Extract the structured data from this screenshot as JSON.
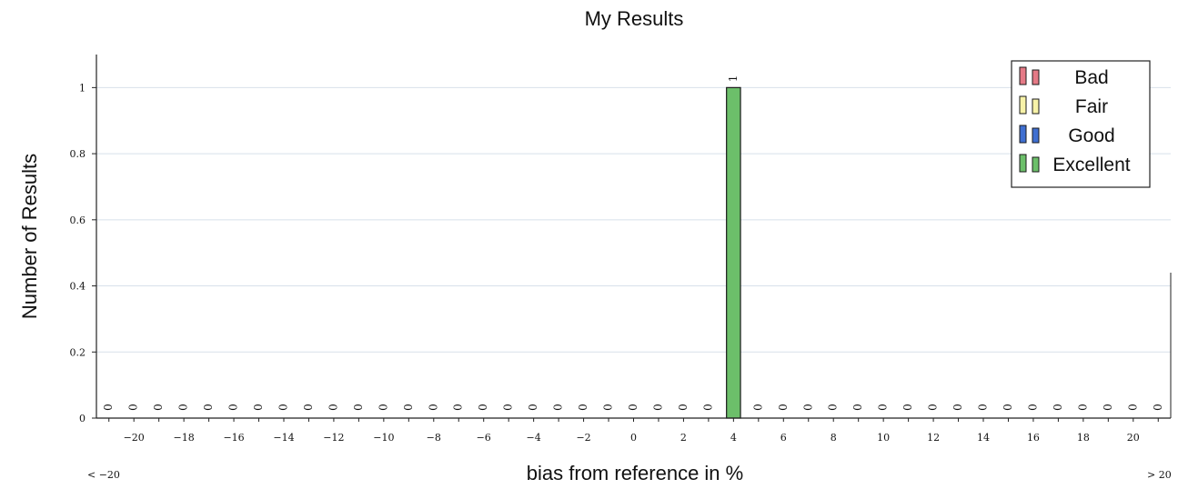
{
  "chart_data": {
    "type": "bar",
    "title": "My Results",
    "xlabel": "bias from reference in %",
    "ylabel": "Number of Results",
    "x_range_labels": {
      "low": "< −20",
      "high": "> 20"
    },
    "categories": [
      -21,
      -20,
      -19,
      -18,
      -17,
      -16,
      -15,
      -14,
      -13,
      -12,
      -11,
      -10,
      -9,
      -8,
      -7,
      -6,
      -5,
      -4,
      -3,
      -2,
      -1,
      0,
      1,
      2,
      3,
      4,
      5,
      6,
      7,
      8,
      9,
      10,
      11,
      12,
      13,
      14,
      15,
      16,
      17,
      18,
      19,
      20,
      21
    ],
    "x_tick_labels": [
      "−20",
      "−18",
      "−16",
      "−14",
      "−12",
      "−10",
      "−8",
      "−6",
      "−4",
      "−2",
      "0",
      "2",
      "4",
      "6",
      "8",
      "10",
      "12",
      "14",
      "16",
      "18",
      "20"
    ],
    "x_tick_values": [
      -20,
      -18,
      -16,
      -14,
      -12,
      -10,
      -8,
      -6,
      -4,
      -2,
      0,
      2,
      4,
      6,
      8,
      10,
      12,
      14,
      16,
      18,
      20
    ],
    "ylim": [
      0,
      1.1
    ],
    "y_ticks": [
      0,
      0.2,
      0.4,
      0.6,
      0.8,
      1
    ],
    "y_tick_labels": [
      "0",
      "0.2",
      "0.4",
      "0.6",
      "0.8",
      "1"
    ],
    "grid": true,
    "legend_position": "top-right",
    "series": [
      {
        "name": "Bad",
        "color": "#e57a86",
        "values": [
          0,
          0,
          0,
          0,
          0,
          0,
          0,
          0,
          0,
          0,
          0,
          0,
          0,
          0,
          0,
          0,
          0,
          0,
          0,
          0,
          0,
          0,
          0,
          0,
          0,
          0,
          0,
          0,
          0,
          0,
          0,
          0,
          0,
          0,
          0,
          0,
          0,
          0,
          0,
          0,
          0,
          0,
          0
        ]
      },
      {
        "name": "Fair",
        "color": "#f7f2a8",
        "values": [
          0,
          0,
          0,
          0,
          0,
          0,
          0,
          0,
          0,
          0,
          0,
          0,
          0,
          0,
          0,
          0,
          0,
          0,
          0,
          0,
          0,
          0,
          0,
          0,
          0,
          0,
          0,
          0,
          0,
          0,
          0,
          0,
          0,
          0,
          0,
          0,
          0,
          0,
          0,
          0,
          0,
          0,
          0
        ]
      },
      {
        "name": "Good",
        "color": "#3f6fd1",
        "values": [
          0,
          0,
          0,
          0,
          0,
          0,
          0,
          0,
          0,
          0,
          0,
          0,
          0,
          0,
          0,
          0,
          0,
          0,
          0,
          0,
          0,
          0,
          0,
          0,
          0,
          0,
          0,
          0,
          0,
          0,
          0,
          0,
          0,
          0,
          0,
          0,
          0,
          0,
          0,
          0,
          0,
          0,
          0
        ]
      },
      {
        "name": "Excellent",
        "color": "#6cbf6a",
        "values": [
          0,
          0,
          0,
          0,
          0,
          0,
          0,
          0,
          0,
          0,
          0,
          0,
          0,
          0,
          0,
          0,
          0,
          0,
          0,
          0,
          0,
          0,
          0,
          0,
          0,
          1,
          0,
          0,
          0,
          0,
          0,
          0,
          0,
          0,
          0,
          0,
          0,
          0,
          0,
          0,
          0,
          0,
          0
        ]
      }
    ],
    "value_labels": [
      0,
      0,
      0,
      0,
      0,
      0,
      0,
      0,
      0,
      0,
      0,
      0,
      0,
      0,
      0,
      0,
      0,
      0,
      0,
      0,
      0,
      0,
      0,
      0,
      0,
      1,
      0,
      0,
      0,
      0,
      0,
      0,
      0,
      0,
      0,
      0,
      0,
      0,
      0,
      0,
      0,
      0,
      0
    ]
  }
}
